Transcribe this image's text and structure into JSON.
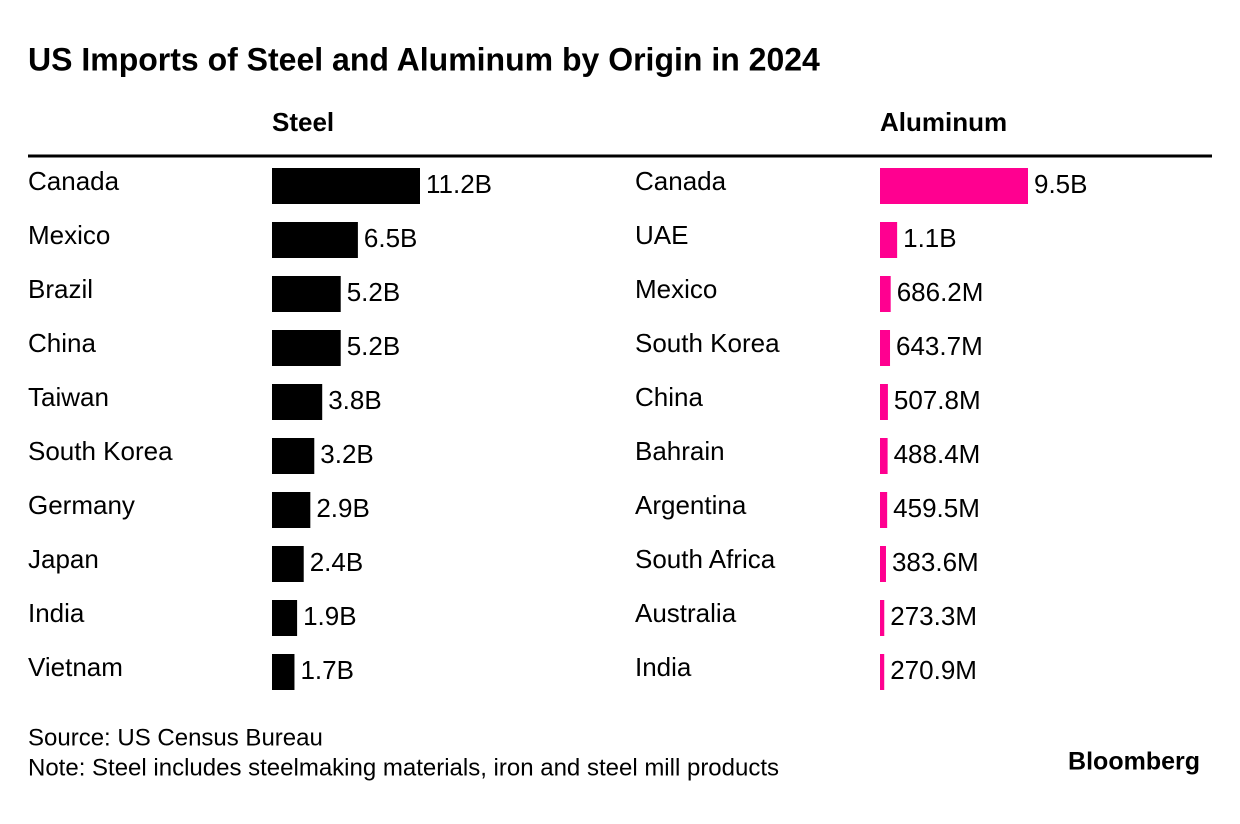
{
  "title": "US Imports of Steel and Aluminum by Origin in 2024",
  "chart_data": [
    {
      "type": "bar",
      "title": "Steel",
      "color": "#000000",
      "categories": [
        "Canada",
        "Mexico",
        "Brazil",
        "China",
        "Taiwan",
        "South Korea",
        "Germany",
        "Japan",
        "India",
        "Vietnam"
      ],
      "values": [
        11200000000,
        6500000000,
        5200000000,
        5200000000,
        3800000000,
        3200000000,
        2900000000,
        2400000000,
        1900000000,
        1700000000
      ],
      "value_labels": [
        "11.2B",
        "6.5B",
        "5.2B",
        "5.2B",
        "3.8B",
        "3.2B",
        "2.9B",
        "2.4B",
        "1.9B",
        "1.7B"
      ]
    },
    {
      "type": "bar",
      "title": "Aluminum",
      "color": "#ff0090",
      "categories": [
        "Canada",
        "UAE",
        "Mexico",
        "South Korea",
        "China",
        "Bahrain",
        "Argentina",
        "South Africa",
        "Australia",
        "India"
      ],
      "values": [
        9500000000,
        1100000000,
        686200000,
        643700000,
        507800000,
        488400000,
        459500000,
        383600000,
        273300000,
        270900000
      ],
      "value_labels": [
        "9.5B",
        "1.1B",
        "686.2M",
        "643.7M",
        "507.8M",
        "488.4M",
        "459.5M",
        "383.6M",
        "273.3M",
        "270.9M"
      ]
    }
  ],
  "source": "Source: US Census Bureau",
  "note": "Note: Steel includes steelmaking materials, iron and steel mill products",
  "brand": "Bloomberg"
}
